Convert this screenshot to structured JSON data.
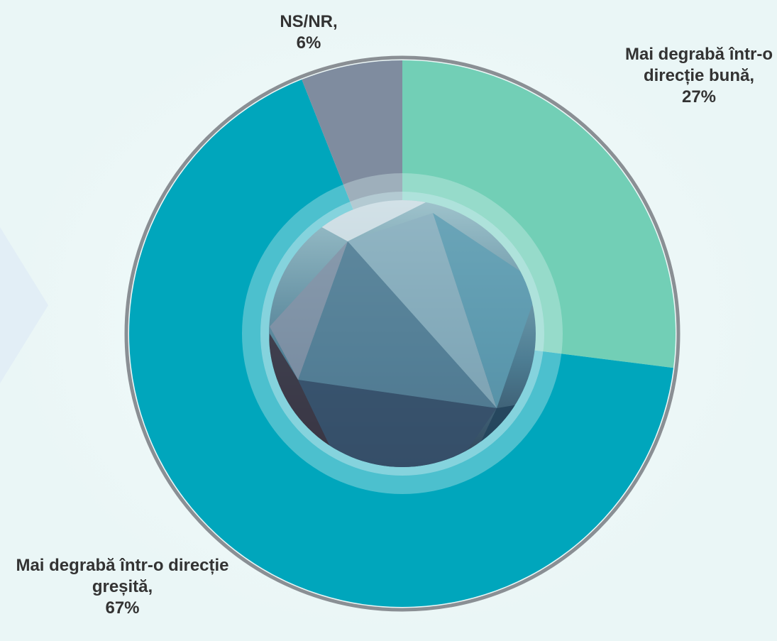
{
  "chart_data": {
    "type": "pie",
    "categories": [
      "Mai degrabă într-o direcție bună,",
      "Mai degrabă într-o direcție greșită,",
      "NS/NR,"
    ],
    "values": [
      27,
      67,
      6
    ],
    "value_labels": [
      "27%",
      "67%",
      "6%"
    ],
    "colors": [
      "#72cfb6",
      "#00a6bc",
      "#7f8c9f"
    ]
  }
}
